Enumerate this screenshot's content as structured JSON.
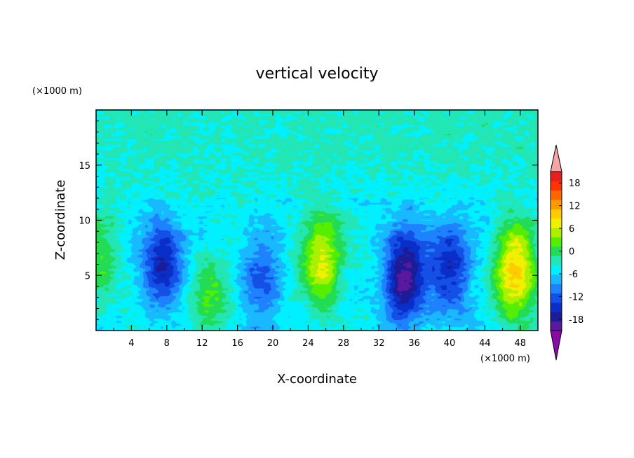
{
  "chart_data": {
    "type": "heatmap",
    "title": "vertical velocity",
    "xlabel": "X-coordinate",
    "ylabel": "Z-coordinate",
    "x_unit": "(×1000 m)",
    "z_unit": "(×1000 m)",
    "xlim": [
      0,
      50
    ],
    "zlim": [
      0,
      20
    ],
    "x_ticks": [
      "4",
      "8",
      "12",
      "16",
      "20",
      "24",
      "28",
      "32",
      "36",
      "40",
      "44",
      "48"
    ],
    "z_ticks": [
      "5",
      "10",
      "15"
    ],
    "colorbar": {
      "levels": [
        -21,
        -18,
        -15,
        -12,
        -9,
        -6,
        -3,
        0,
        3,
        6,
        9,
        12,
        15,
        18,
        21
      ],
      "tick_labels": [
        "18",
        "12",
        "6",
        "0",
        "-6",
        "-12",
        "-18"
      ],
      "colors": [
        "#8a0aa8",
        "#5a189e",
        "#1c1c96",
        "#0a2ec8",
        "#1450e6",
        "#1e82ff",
        "#19b9ff",
        "#00f0ff",
        "#22e6b4",
        "#22dc55",
        "#55ee00",
        "#aaf000",
        "#f0f000",
        "#ffcc00",
        "#ff9900",
        "#ff6600",
        "#ff3300",
        "#e62020",
        "#f5a5a5"
      ]
    },
    "features": [
      {
        "x": 0.3,
        "z": 6.5,
        "value": 8
      },
      {
        "x": 7.5,
        "z": 6.0,
        "value": -13
      },
      {
        "x": 13.0,
        "z": 3.5,
        "value": 7
      },
      {
        "x": 18.5,
        "z": 4.5,
        "value": -9
      },
      {
        "x": 25.5,
        "z": 6.5,
        "value": 14
      },
      {
        "x": 35.0,
        "z": 5.0,
        "value": -18
      },
      {
        "x": 40.0,
        "z": 5.5,
        "value": -13
      },
      {
        "x": 47.5,
        "z": 5.5,
        "value": 18
      }
    ]
  }
}
